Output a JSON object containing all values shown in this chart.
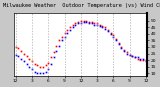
{
  "title": "Milwaukee Weather  Outdoor Temperature (vs) Wind Chill (Last 24 Hours)",
  "temp_color": "#ff0000",
  "wind_chill_color": "#0000ff",
  "background_color": "#c8c8c8",
  "plot_bg_color": "#ffffff",
  "grid_color": "#aaaaaa",
  "ylim": [
    8,
    56
  ],
  "ytick_values": [
    10,
    15,
    20,
    25,
    30,
    35,
    40,
    45,
    50
  ],
  "num_points": 49,
  "temp_values": [
    30,
    29,
    27,
    25,
    23,
    21,
    19,
    17,
    16,
    15,
    15,
    16,
    18,
    22,
    26,
    31,
    35,
    38,
    41,
    43,
    45,
    47,
    48,
    49,
    50,
    50,
    50,
    49,
    49,
    48,
    48,
    47,
    46,
    45,
    43,
    41,
    39,
    36,
    33,
    30,
    28,
    26,
    24,
    23,
    22,
    21,
    20,
    20,
    19
  ],
  "wind_chill_values": [
    24,
    23,
    21,
    19,
    17,
    15,
    13,
    11,
    10,
    10,
    10,
    11,
    13,
    17,
    22,
    27,
    31,
    35,
    38,
    41,
    43,
    45,
    47,
    48,
    48,
    49,
    49,
    48,
    48,
    47,
    47,
    46,
    45,
    44,
    42,
    40,
    38,
    35,
    32,
    29,
    27,
    25,
    24,
    23,
    22,
    22,
    21,
    21,
    20
  ],
  "title_fontsize": 3.8,
  "tick_fontsize": 3.2,
  "marker_size": 1.2,
  "grid_positions": [
    0,
    6,
    12,
    18,
    24,
    30,
    36,
    42,
    48
  ]
}
